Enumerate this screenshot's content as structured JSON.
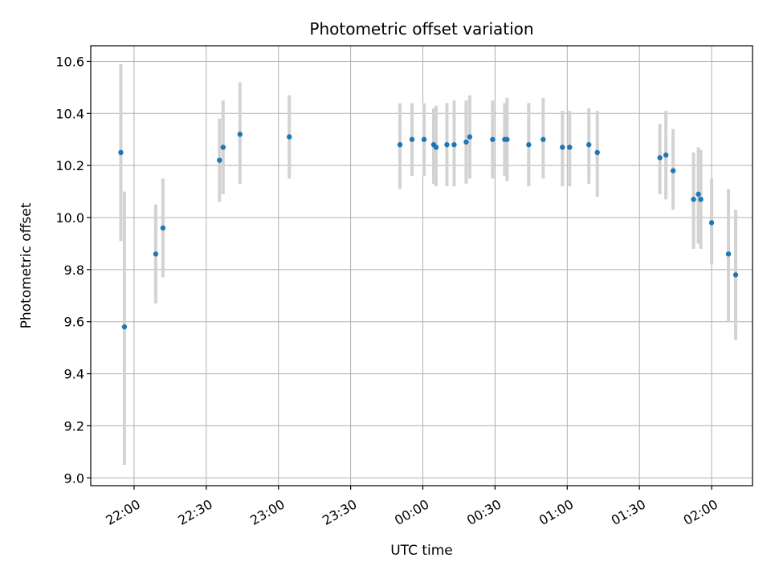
{
  "chart_data": {
    "type": "scatter",
    "title": "Photometric offset variation",
    "xlabel": "UTC time",
    "ylabel": "Photometric offset",
    "x_ticks": [
      "22:00",
      "22:30",
      "23:00",
      "23:30",
      "00:00",
      "00:30",
      "01:00",
      "01:30",
      "02:00"
    ],
    "x_tick_minutes": [
      0,
      30,
      60,
      90,
      120,
      150,
      180,
      210,
      240
    ],
    "xlim_minutes": [
      -18,
      257
    ],
    "y_ticks": [
      9.0,
      9.2,
      9.4,
      9.6,
      9.8,
      10.0,
      10.2,
      10.4,
      10.6
    ],
    "ylim": [
      8.97,
      10.66
    ],
    "grid": true,
    "colors": {
      "point": "#1f77b4",
      "error_bar": "#d3d3d3",
      "grid": "#b0b0b0"
    },
    "points": [
      {
        "t": -5.5,
        "y": 10.25,
        "lo": 9.91,
        "hi": 10.59
      },
      {
        "t": -4.0,
        "y": 9.58,
        "lo": 9.05,
        "hi": 10.1
      },
      {
        "t": 9.0,
        "y": 9.86,
        "lo": 9.67,
        "hi": 10.05
      },
      {
        "t": 12.0,
        "y": 9.96,
        "lo": 9.77,
        "hi": 10.15
      },
      {
        "t": 35.5,
        "y": 10.22,
        "lo": 10.06,
        "hi": 10.38
      },
      {
        "t": 37.0,
        "y": 10.27,
        "lo": 10.09,
        "hi": 10.45
      },
      {
        "t": 44.0,
        "y": 10.32,
        "lo": 10.13,
        "hi": 10.52
      },
      {
        "t": 64.5,
        "y": 10.31,
        "lo": 10.15,
        "hi": 10.47
      },
      {
        "t": 110.5,
        "y": 10.28,
        "lo": 10.11,
        "hi": 10.44
      },
      {
        "t": 115.5,
        "y": 10.3,
        "lo": 10.16,
        "hi": 10.44
      },
      {
        "t": 120.5,
        "y": 10.3,
        "lo": 10.16,
        "hi": 10.44
      },
      {
        "t": 124.5,
        "y": 10.28,
        "lo": 10.13,
        "hi": 10.42
      },
      {
        "t": 125.5,
        "y": 10.27,
        "lo": 10.12,
        "hi": 10.43
      },
      {
        "t": 130.0,
        "y": 10.28,
        "lo": 10.12,
        "hi": 10.44
      },
      {
        "t": 133.0,
        "y": 10.28,
        "lo": 10.12,
        "hi": 10.45
      },
      {
        "t": 138.0,
        "y": 10.29,
        "lo": 10.13,
        "hi": 10.45
      },
      {
        "t": 139.5,
        "y": 10.31,
        "lo": 10.15,
        "hi": 10.47
      },
      {
        "t": 149.0,
        "y": 10.3,
        "lo": 10.15,
        "hi": 10.45
      },
      {
        "t": 154.0,
        "y": 10.3,
        "lo": 10.16,
        "hi": 10.44
      },
      {
        "t": 155.0,
        "y": 10.3,
        "lo": 10.14,
        "hi": 10.46
      },
      {
        "t": 164.0,
        "y": 10.28,
        "lo": 10.12,
        "hi": 10.44
      },
      {
        "t": 170.0,
        "y": 10.3,
        "lo": 10.15,
        "hi": 10.46
      },
      {
        "t": 178.0,
        "y": 10.27,
        "lo": 10.12,
        "hi": 10.41
      },
      {
        "t": 181.0,
        "y": 10.27,
        "lo": 10.12,
        "hi": 10.41
      },
      {
        "t": 189.0,
        "y": 10.28,
        "lo": 10.13,
        "hi": 10.42
      },
      {
        "t": 192.5,
        "y": 10.25,
        "lo": 10.08,
        "hi": 10.41
      },
      {
        "t": 218.5,
        "y": 10.23,
        "lo": 10.09,
        "hi": 10.36
      },
      {
        "t": 221.0,
        "y": 10.24,
        "lo": 10.07,
        "hi": 10.41
      },
      {
        "t": 224.0,
        "y": 10.18,
        "lo": 10.03,
        "hi": 10.34
      },
      {
        "t": 232.5,
        "y": 10.07,
        "lo": 9.88,
        "hi": 10.25
      },
      {
        "t": 234.5,
        "y": 10.09,
        "lo": 9.9,
        "hi": 10.27
      },
      {
        "t": 235.5,
        "y": 10.07,
        "lo": 9.88,
        "hi": 10.26
      },
      {
        "t": 240.0,
        "y": 9.98,
        "lo": 9.82,
        "hi": 10.15
      },
      {
        "t": 247.0,
        "y": 9.86,
        "lo": 9.6,
        "hi": 10.11
      },
      {
        "t": 250.0,
        "y": 9.78,
        "lo": 9.53,
        "hi": 10.03
      }
    ]
  }
}
